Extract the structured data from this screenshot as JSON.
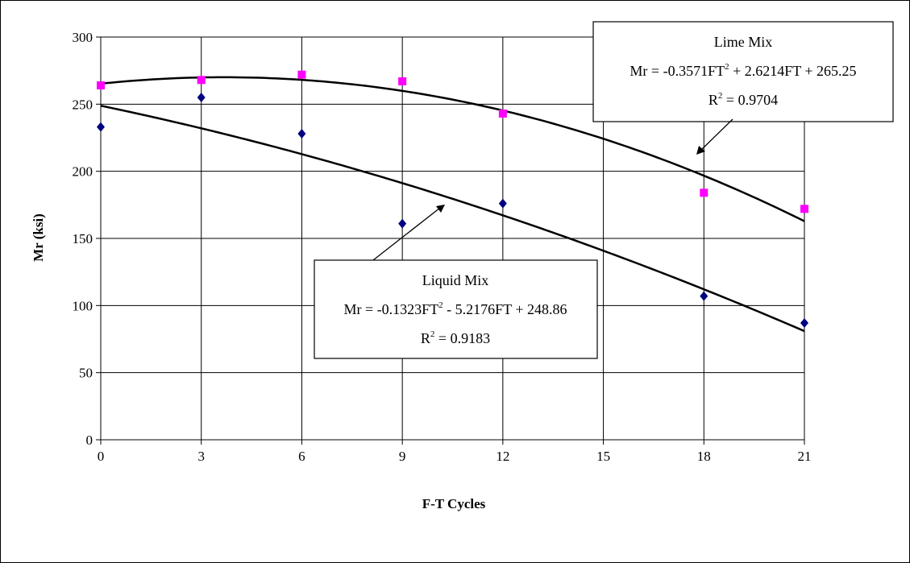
{
  "chart_data": {
    "type": "scatter",
    "title": "",
    "xlabel": "F-T Cycles",
    "ylabel": "Mr (ksi)",
    "xlim": [
      0,
      21
    ],
    "ylim": [
      0,
      300
    ],
    "x_ticks": [
      "0",
      "3",
      "6",
      "9",
      "12",
      "15",
      "18",
      "21"
    ],
    "y_ticks": [
      "0",
      "50",
      "100",
      "150",
      "200",
      "250",
      "300"
    ],
    "grid": true,
    "series": [
      {
        "name": "Lime Mix",
        "color": "#ff00ff",
        "marker": "square",
        "x": [
          0,
          3,
          6,
          9,
          12,
          18,
          21
        ],
        "y": [
          264,
          268,
          272,
          267,
          243,
          184,
          172
        ],
        "trend": {
          "type": "poly2",
          "a": -0.3571,
          "b": 2.6214,
          "c": 265.25
        }
      },
      {
        "name": "Liquid Mix",
        "color": "#000080",
        "marker": "diamond",
        "x": [
          0,
          3,
          6,
          9,
          12,
          18,
          21
        ],
        "y": [
          233,
          255,
          228,
          161,
          176,
          107,
          87
        ],
        "trend": {
          "type": "poly2",
          "a": -0.1323,
          "b": -5.2176,
          "c": 248.86
        }
      }
    ],
    "annotations": [
      {
        "id": "lime",
        "title": "Lime Mix",
        "eq_prefix": "Mr = -0.3571FT",
        "eq_sup": "2",
        "eq_suffix": " + 2.6214FT + 265.25",
        "r2_prefix": "R",
        "r2_sup": "2",
        "r2_suffix": " = 0.9704"
      },
      {
        "id": "liquid",
        "title": "Liquid Mix",
        "eq_prefix": "Mr = -0.1323FT",
        "eq_sup": "2",
        "eq_suffix": " - 5.2176FT + 248.86",
        "r2_prefix": "R",
        "r2_sup": "2",
        "r2_suffix": " = 0.9183"
      }
    ]
  }
}
